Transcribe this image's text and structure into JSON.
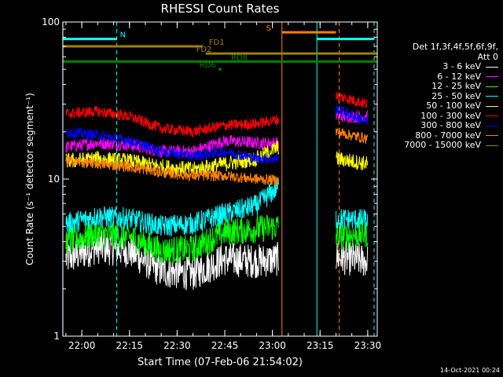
{
  "chart_data": {
    "type": "line",
    "title": "RHESSI Count Rates",
    "xlabel": "Start Time (07-Feb-06 21:54:02)",
    "ylabel": "Count Rate (s⁻¹ detector segment⁻¹)",
    "yscale": "log",
    "ylim": [
      1,
      100
    ],
    "xlim": [
      "21:54:02",
      "23:33:00"
    ],
    "x_ticks": [
      "22:00",
      "22:15",
      "22:30",
      "22:45",
      "23:00",
      "23:15",
      "23:30"
    ],
    "y_ticks": [
      "1",
      "10",
      "100"
    ],
    "legend_header": [
      "Det 1f,3f,4f,5f,6f,9f,",
      "Att 0"
    ],
    "legend_position": "right",
    "data_gap": [
      "23:02",
      "23:20"
    ],
    "series": [
      {
        "name": "3 - 6 keV",
        "color": "#ffffff",
        "points": [
          [
            "21:55",
            3.1
          ],
          [
            "22:05",
            3.7
          ],
          [
            "22:15",
            3.5
          ],
          [
            "22:25",
            2.6
          ],
          [
            "22:35",
            2.5
          ],
          [
            "22:45",
            3.1
          ],
          [
            "22:55",
            3.0
          ],
          [
            "23:02",
            3.1
          ],
          [
            "23:20",
            3.2
          ],
          [
            "23:30",
            3.0
          ]
        ]
      },
      {
        "name": "6 - 12 keV",
        "color": "#ff00ff",
        "points": [
          [
            "21:55",
            16
          ],
          [
            "22:05",
            17
          ],
          [
            "22:15",
            16.5
          ],
          [
            "22:25",
            15
          ],
          [
            "22:35",
            15
          ],
          [
            "22:45",
            17.5
          ],
          [
            "22:55",
            17
          ],
          [
            "23:02",
            17
          ],
          [
            "23:20",
            25
          ],
          [
            "23:30",
            25
          ]
        ]
      },
      {
        "name": "12 - 25 keV",
        "color": "#00ff00",
        "points": [
          [
            "21:55",
            4.0
          ],
          [
            "22:05",
            4.5
          ],
          [
            "22:15",
            4.3
          ],
          [
            "22:25",
            3.5
          ],
          [
            "22:35",
            3.6
          ],
          [
            "22:45",
            4.6
          ],
          [
            "22:55",
            4.8
          ],
          [
            "23:02",
            5.0
          ],
          [
            "23:20",
            4.3
          ],
          [
            "23:30",
            4.5
          ]
        ]
      },
      {
        "name": "25 - 50 keV",
        "color": "#00ffff",
        "points": [
          [
            "21:55",
            5.2
          ],
          [
            "22:05",
            5.8
          ],
          [
            "22:15",
            5.6
          ],
          [
            "22:25",
            5.0
          ],
          [
            "22:35",
            5.2
          ],
          [
            "22:45",
            6.0
          ],
          [
            "22:55",
            6.8
          ],
          [
            "23:02",
            9.0
          ],
          [
            "23:20",
            5.6
          ],
          [
            "23:30",
            5.5
          ]
        ]
      },
      {
        "name": "50 - 100 keV",
        "color": "#ffff00",
        "points": [
          [
            "21:55",
            13
          ],
          [
            "22:05",
            13.5
          ],
          [
            "22:15",
            13
          ],
          [
            "22:25",
            12
          ],
          [
            "22:35",
            11.5
          ],
          [
            "22:45",
            12.5
          ],
          [
            "22:55",
            13.5
          ],
          [
            "23:02",
            16
          ],
          [
            "23:20",
            13.5
          ],
          [
            "23:30",
            12.5
          ]
        ]
      },
      {
        "name": "100 - 300 keV",
        "color": "#ff0000",
        "points": [
          [
            "21:55",
            26
          ],
          [
            "22:05",
            27
          ],
          [
            "22:15",
            25
          ],
          [
            "22:25",
            21
          ],
          [
            "22:35",
            20
          ],
          [
            "22:45",
            22
          ],
          [
            "22:55",
            22.5
          ],
          [
            "23:02",
            24
          ],
          [
            "23:20",
            34
          ],
          [
            "23:30",
            30
          ]
        ]
      },
      {
        "name": "300 - 800 keV",
        "color": "#0000ff",
        "points": [
          [
            "21:55",
            20
          ],
          [
            "22:05",
            19
          ],
          [
            "22:15",
            17.5
          ],
          [
            "22:25",
            15
          ],
          [
            "22:35",
            14
          ],
          [
            "22:45",
            15
          ],
          [
            "22:55",
            13.5
          ],
          [
            "23:02",
            13.5
          ],
          [
            "23:20",
            28
          ],
          [
            "23:30",
            23
          ]
        ]
      },
      {
        "name": "800 - 7000 keV",
        "color": "#ff8000",
        "points": [
          [
            "21:55",
            13
          ],
          [
            "22:05",
            12.5
          ],
          [
            "22:15",
            12
          ],
          [
            "22:25",
            11
          ],
          [
            "22:35",
            10.5
          ],
          [
            "22:45",
            10.5
          ],
          [
            "22:55",
            10
          ],
          [
            "23:02",
            9.8
          ],
          [
            "23:20",
            20
          ],
          [
            "23:30",
            18
          ]
        ]
      },
      {
        "name": "7000 - 15000 keV",
        "color": "#a08000",
        "points": []
      }
    ],
    "flag_bars": [
      {
        "label": "N",
        "color": "#00ffff",
        "segments": [
          [
            "21:54",
            "22:11"
          ],
          [
            "23:14",
            "23:32"
          ]
        ],
        "y": 78,
        "label_time": "22:12"
      },
      {
        "label": "S",
        "color": "#ff8000",
        "segments": [
          [
            "23:03",
            "23:20"
          ]
        ],
        "y": 86,
        "label_time": "22:58"
      },
      {
        "label": "FD1",
        "color": "#a08000",
        "segments": [
          [
            "21:54",
            "22:38"
          ]
        ],
        "y": 70,
        "label_time": "22:40"
      },
      {
        "label": "FD2",
        "color": "#a08000",
        "segments": [
          [
            "22:39",
            "23:33"
          ]
        ],
        "y": 63,
        "label_time": "22:36"
      },
      {
        "label": "RD8",
        "color": "#008000",
        "segments": [
          [
            "21:54",
            "23:33"
          ]
        ],
        "y": 56,
        "label_time": "22:47"
      },
      {
        "label": "RD6",
        "color": "#008000",
        "segments": [
          [
            "22:43",
            "22:44"
          ]
        ],
        "y": 50,
        "label_time": "22:37"
      }
    ],
    "vlines": [
      {
        "time": "21:54",
        "color": "#00ffff",
        "style": "solid"
      },
      {
        "time": "22:11",
        "color": "#00ffff",
        "style": "dashed"
      },
      {
        "time": "23:03",
        "color": "#ff8000",
        "style": "solid"
      },
      {
        "time": "23:14",
        "color": "#00ffff",
        "style": "solid"
      },
      {
        "time": "23:21",
        "color": "#ff8000",
        "style": "dashed"
      },
      {
        "time": "23:32",
        "color": "#00ffff",
        "style": "dashed"
      }
    ]
  },
  "footer": {
    "timestamp": "14-Oct-2021 00:24"
  }
}
